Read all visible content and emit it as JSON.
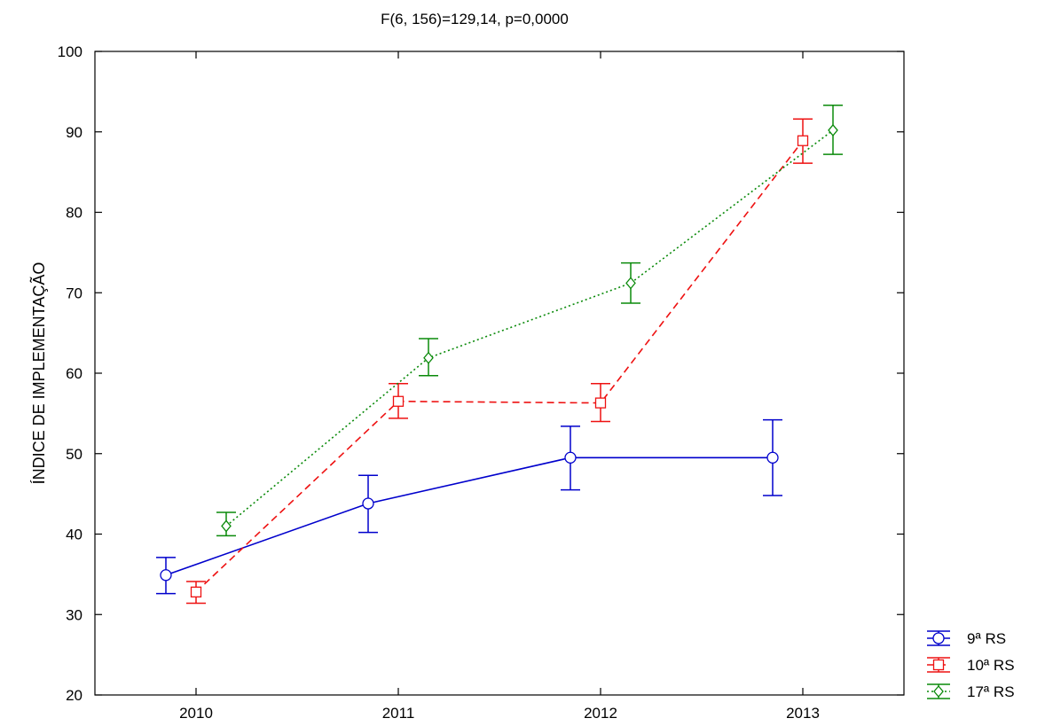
{
  "chart_data": {
    "type": "line",
    "title": "F(6, 156)=129,14, p=0,0000",
    "xlabel": "",
    "ylabel": "ÍNDICE DE IMPLEMENTAÇÃO",
    "categories": [
      "2010",
      "2011",
      "2012",
      "2013"
    ],
    "ylim": [
      20,
      100
    ],
    "yticks": [
      "20",
      "30",
      "40",
      "50",
      "60",
      "70",
      "80",
      "90",
      "100"
    ],
    "grid": false,
    "legend_position": "bottom-right outside",
    "series": [
      {
        "name": "9ª RS",
        "color": "#0000cc",
        "line_style": "solid",
        "marker": "circle",
        "values": [
          34.9,
          43.8,
          49.5,
          49.5
        ],
        "lower": [
          32.6,
          40.2,
          45.5,
          44.8
        ],
        "upper": [
          37.1,
          47.3,
          53.4,
          54.2
        ]
      },
      {
        "name": "10ª RS",
        "color": "#ee1111",
        "line_style": "dashed",
        "marker": "square",
        "values": [
          32.8,
          56.5,
          56.3,
          88.9
        ],
        "lower": [
          31.4,
          54.4,
          54.0,
          86.1
        ],
        "upper": [
          34.1,
          58.7,
          58.7,
          91.6
        ]
      },
      {
        "name": "17ª RS",
        "color": "#0a8a0a",
        "line_style": "dotted",
        "marker": "diamond",
        "values": [
          41.0,
          61.9,
          71.2,
          90.2
        ],
        "lower": [
          39.8,
          59.7,
          68.7,
          87.2
        ],
        "upper": [
          42.7,
          64.3,
          73.7,
          93.3
        ]
      }
    ]
  }
}
